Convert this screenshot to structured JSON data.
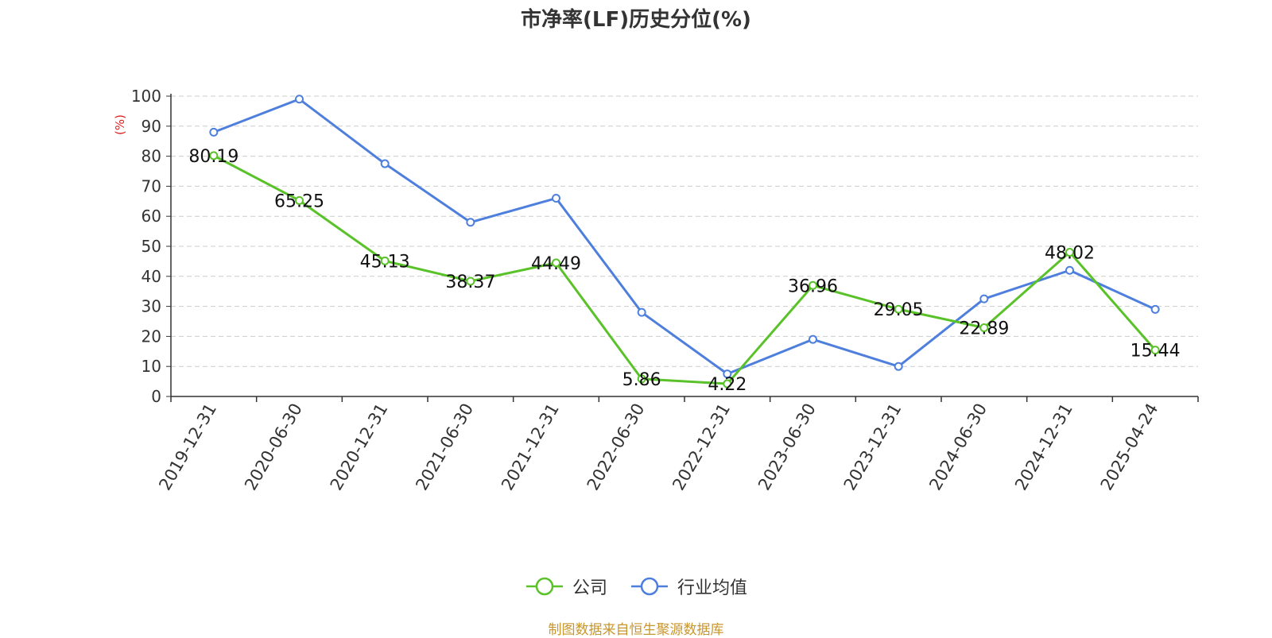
{
  "chart_data": {
    "type": "line",
    "title": "市净率(LF)历史分位(%)",
    "ylabel": "(%)",
    "xlabel": "",
    "ylim": [
      0,
      100
    ],
    "yticks": [
      0,
      10,
      20,
      30,
      40,
      50,
      60,
      70,
      80,
      90,
      100
    ],
    "categories": [
      "2019-12-31",
      "2020-06-30",
      "2020-12-31",
      "2021-06-30",
      "2021-12-31",
      "2022-06-30",
      "2022-12-31",
      "2023-06-30",
      "2023-12-31",
      "2024-06-30",
      "2024-12-31",
      "2025-04-24"
    ],
    "series": [
      {
        "name": "公司",
        "color": "#5ac229",
        "values": [
          80.19,
          65.25,
          45.13,
          38.37,
          44.49,
          5.86,
          4.22,
          36.96,
          29.05,
          22.89,
          48.02,
          15.44
        ],
        "labels": [
          "80.19",
          "65.25",
          "45.13",
          "38.37",
          "44.49",
          "5.86",
          "4.22",
          "36.96",
          "29.05",
          "22.89",
          "48.02",
          "15.44"
        ]
      },
      {
        "name": "行业均值",
        "color": "#4e7fdd",
        "values": [
          88,
          99,
          77.5,
          58,
          66,
          28,
          7.5,
          19,
          10,
          32.5,
          42,
          29
        ]
      }
    ],
    "grid": true,
    "legend_position": "bottom-center",
    "source": "制图数据来自恒生聚源数据库"
  }
}
